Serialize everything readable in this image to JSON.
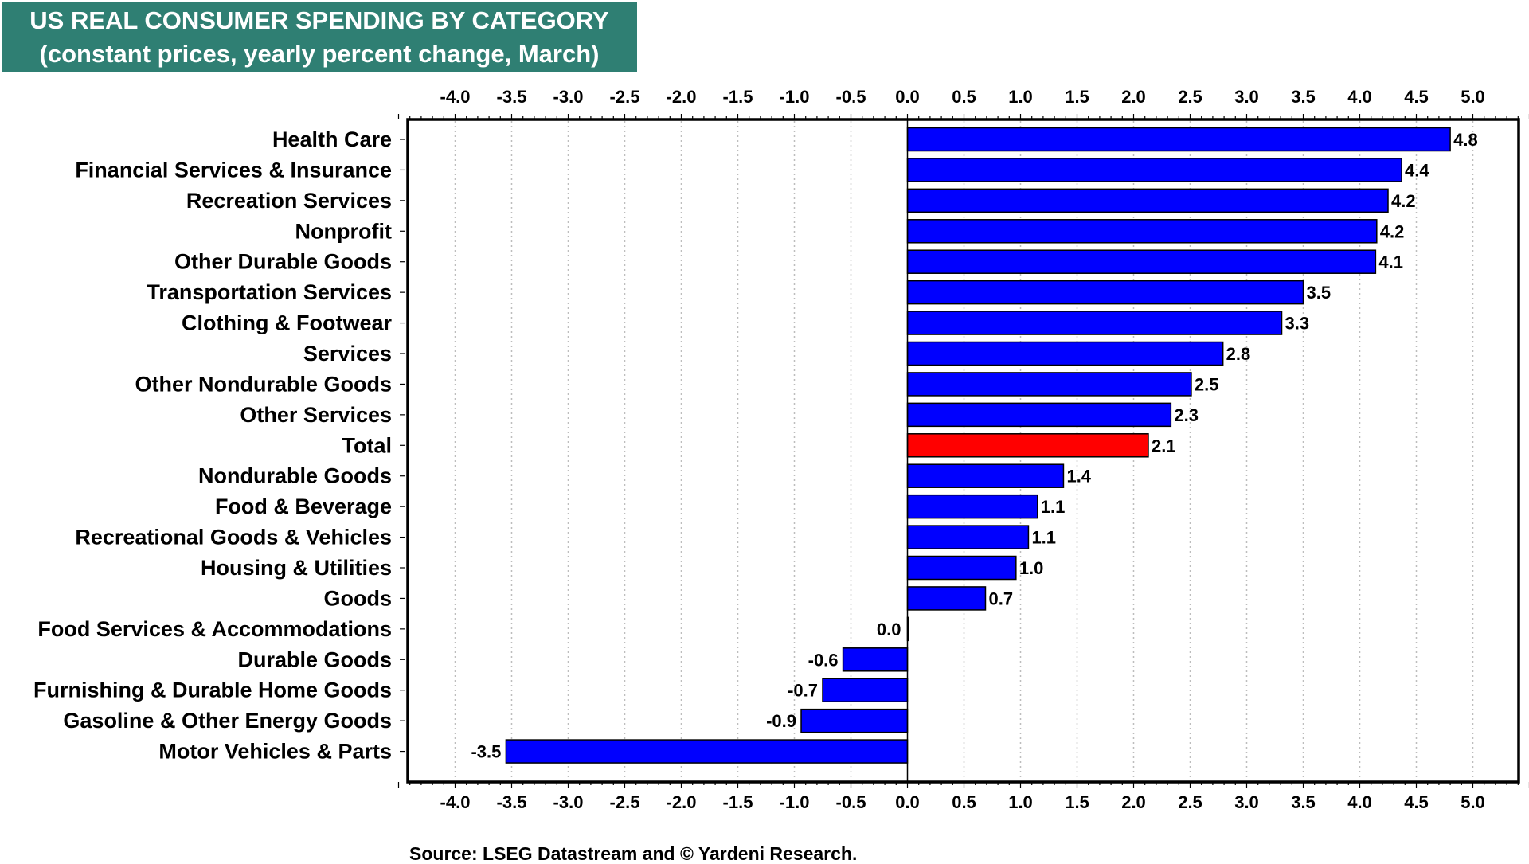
{
  "chart_data": {
    "type": "bar",
    "orientation": "horizontal",
    "title": "US REAL CONSUMER SPENDING BY CATEGORY",
    "subtitle": "(constant prices, yearly percent change, March)",
    "source": "Source: LSEG Datastream and © Yardeni Research.",
    "xlim": [
      -4.5,
      5.5
    ],
    "ticks": [
      "-4.0",
      "-3.5",
      "-3.0",
      "-2.5",
      "-2.0",
      "-1.5",
      "-1.0",
      "-0.5",
      "0.0",
      "0.5",
      "1.0",
      "1.5",
      "2.0",
      "2.5",
      "3.0",
      "3.5",
      "4.0",
      "4.5",
      "5.0"
    ],
    "grid": true,
    "colors": {
      "bar": "#0000ff",
      "highlight": "#ff0000",
      "title_bg": "#2f7f73"
    },
    "bars": [
      {
        "label": "Health Care",
        "value": 4.8,
        "text": "4.8"
      },
      {
        "label": "Financial Services & Insurance",
        "value": 4.37,
        "text": "4.4"
      },
      {
        "label": "Recreation Services",
        "value": 4.25,
        "text": "4.2"
      },
      {
        "label": "Nonprofit",
        "value": 4.15,
        "text": "4.2"
      },
      {
        "label": "Other Durable Goods",
        "value": 4.14,
        "text": "4.1"
      },
      {
        "label": "Transportation Services",
        "value": 3.5,
        "text": "3.5"
      },
      {
        "label": "Clothing & Footwear",
        "value": 3.31,
        "text": "3.3"
      },
      {
        "label": "Services",
        "value": 2.79,
        "text": "2.8"
      },
      {
        "label": "Other Nondurable Goods",
        "value": 2.51,
        "text": "2.5"
      },
      {
        "label": "Other Services",
        "value": 2.33,
        "text": "2.3"
      },
      {
        "label": "Total",
        "value": 2.13,
        "text": "2.1",
        "highlight": true
      },
      {
        "label": "Nondurable Goods",
        "value": 1.38,
        "text": "1.4"
      },
      {
        "label": "Food & Beverage",
        "value": 1.15,
        "text": "1.1"
      },
      {
        "label": "Recreational Goods & Vehicles",
        "value": 1.07,
        "text": "1.1"
      },
      {
        "label": "Housing & Utilities",
        "value": 0.96,
        "text": "1.0"
      },
      {
        "label": "Goods",
        "value": 0.69,
        "text": "0.7"
      },
      {
        "label": "Food Services & Accommodations",
        "value": 0.0,
        "text": "0.0"
      },
      {
        "label": "Durable Goods",
        "value": -0.57,
        "text": "-0.6"
      },
      {
        "label": "Furnishing & Durable Home Goods",
        "value": -0.75,
        "text": "-0.7"
      },
      {
        "label": "Gasoline & Other Energy Goods",
        "value": -0.94,
        "text": "-0.9"
      },
      {
        "label": "Motor Vehicles & Parts",
        "value": -3.55,
        "text": "-3.5"
      }
    ]
  }
}
